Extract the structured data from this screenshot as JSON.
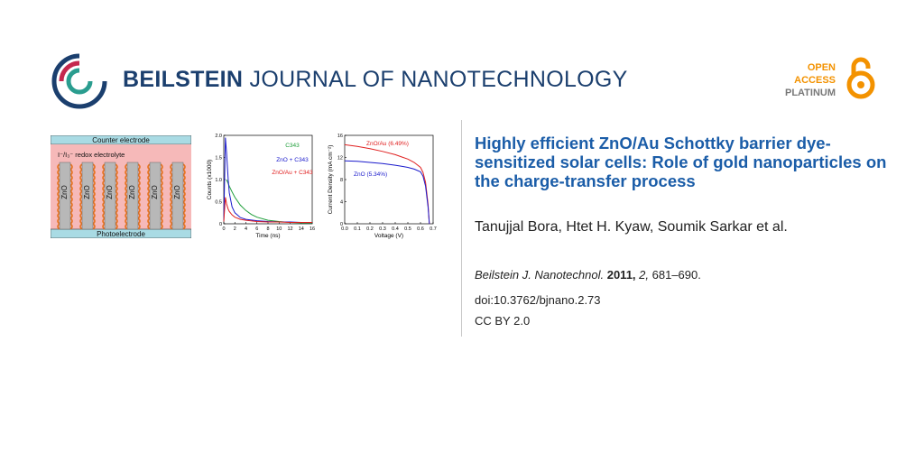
{
  "header": {
    "journal_bold": "BEILSTEIN",
    "journal_rest": "JOURNAL OF NANOTECHNOLOGY",
    "open_access": {
      "line1": "OPEN",
      "line2": "ACCESS",
      "line3": "PLATINUM",
      "color": "#f39200"
    },
    "logo_colors": [
      "#1b3f6e",
      "#c5284d",
      "#2a9d8f"
    ]
  },
  "graphical_abstract": {
    "schematic": {
      "top_label": "Counter electrode",
      "electrolyte_label": "I⁻/I₃⁻ redox electrolyte",
      "bottom_label": "Photoelectrode",
      "rod_label": "ZnO",
      "electrode_color": "#a9dbe4",
      "electrolyte_color": "#f6b9b9"
    },
    "chart_data": [
      {
        "type": "line",
        "xlabel": "Time (ns)",
        "ylabel": "Counts (x1000)",
        "xlim": [
          0,
          16
        ],
        "ylim": [
          0,
          2.0
        ],
        "x_ticks": [
          "0",
          "2",
          "4",
          "6",
          "8",
          "10",
          "12",
          "14",
          "16"
        ],
        "y_ticks": [
          "0",
          "0.5",
          "1.0",
          "1.5",
          "2.0"
        ],
        "series": [
          {
            "name": "C343",
            "color": "#1e9e3a",
            "x": [
              0.5,
              1,
              1.5,
              2,
              3,
              4,
              5,
              6,
              8,
              10,
              12,
              14,
              16
            ],
            "y": [
              1.0,
              0.85,
              0.72,
              0.6,
              0.42,
              0.3,
              0.21,
              0.15,
              0.08,
              0.05,
              0.03,
              0.02,
              0.02
            ]
          },
          {
            "name": "ZnO + C343",
            "color": "#1a1acc",
            "x": [
              0,
              0.3,
              0.5,
              0.8,
              1,
              1.5,
              2,
              3,
              4,
              6,
              8,
              10,
              12,
              14,
              16
            ],
            "y": [
              0.05,
              1.95,
              1.6,
              1.0,
              0.7,
              0.38,
              0.25,
              0.14,
              0.1,
              0.07,
              0.05,
              0.04,
              0.04,
              0.03,
              0.03
            ]
          },
          {
            "name": "ZnO/Au + C343",
            "color": "#e02020",
            "x": [
              0,
              0.3,
              0.5,
              0.8,
              1,
              1.5,
              2,
              3,
              4,
              6,
              8,
              10,
              12,
              14,
              16
            ],
            "y": [
              0.05,
              0.6,
              0.45,
              0.33,
              0.28,
              0.2,
              0.15,
              0.1,
              0.08,
              0.05,
              0.04,
              0.04,
              0.03,
              0.03,
              0.03
            ]
          }
        ]
      },
      {
        "type": "line",
        "xlabel": "Voltage (V)",
        "ylabel": "Current Density  (mA cm⁻²)",
        "xlim": [
          0,
          0.7
        ],
        "ylim": [
          0,
          16
        ],
        "x_ticks": [
          "0.0",
          "0.1",
          "0.2",
          "0.3",
          "0.4",
          "0.5",
          "0.6",
          "0.7"
        ],
        "y_ticks": [
          "0",
          "4",
          "8",
          "12",
          "16"
        ],
        "series": [
          {
            "name": "ZnO/Au (6.49%)",
            "color": "#e02020",
            "x": [
              0,
              0.1,
              0.2,
              0.3,
              0.4,
              0.45,
              0.5,
              0.55,
              0.6,
              0.62,
              0.64,
              0.66,
              0.67
            ],
            "y": [
              14.3,
              14.0,
              13.6,
              13.1,
              12.5,
              12.1,
              11.7,
              11.1,
              10.2,
              9.3,
              7.5,
              3.5,
              0
            ]
          },
          {
            "name": "ZnO (5.34%)",
            "color": "#1a1acc",
            "x": [
              0,
              0.1,
              0.2,
              0.3,
              0.4,
              0.45,
              0.5,
              0.55,
              0.6,
              0.62,
              0.64,
              0.66,
              0.67
            ],
            "y": [
              11.4,
              11.3,
              11.1,
              10.9,
              10.6,
              10.4,
              10.2,
              9.9,
              9.4,
              8.6,
              6.8,
              3.0,
              0
            ]
          }
        ]
      }
    ]
  },
  "article": {
    "title": "Highly efficient ZnO/Au Schottky barrier dye-sensitized solar cells: Role of gold nanoparticles on the charge-transfer process",
    "authors": "Tanujjal Bora, Htet H. Kyaw, Soumik Sarkar et al.",
    "citation": {
      "journal": "Beilstein J. Nanotechnol.",
      "year": "2011,",
      "volume": "2,",
      "pages": "681–690."
    },
    "doi": "doi:10.3762/bjnano.2.73",
    "license": "CC BY 2.0"
  }
}
